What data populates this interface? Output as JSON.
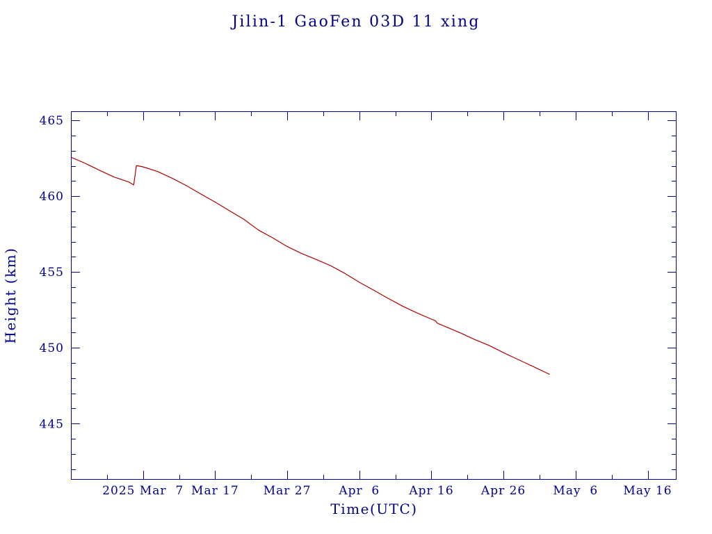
{
  "chart_data": {
    "type": "line",
    "title": "Jilin-1 GaoFen 03D 11 xing",
    "xlabel": "Time(UTC)",
    "ylabel": "Height (km)",
    "xlim": [
      "2025-02-25",
      "2025-05-20"
    ],
    "ylim": [
      441.3,
      465.6
    ],
    "x_ticks": [
      {
        "date": "2025-03-07",
        "label": "2025 Mar  7"
      },
      {
        "date": "2025-03-17",
        "label": "Mar 17"
      },
      {
        "date": "2025-03-27",
        "label": "Mar 27"
      },
      {
        "date": "2025-04-06",
        "label": "Apr  6"
      },
      {
        "date": "2025-04-16",
        "label": "Apr 16"
      },
      {
        "date": "2025-04-26",
        "label": "Apr 26"
      },
      {
        "date": "2025-05-06",
        "label": "May  6"
      },
      {
        "date": "2025-05-16",
        "label": "May 16"
      }
    ],
    "x_minor_tick_step_days": 5,
    "y_ticks": [
      445,
      450,
      455,
      460,
      465
    ],
    "y_minor_tick_step": 1,
    "grid": false,
    "series": [
      {
        "color": "#b00000",
        "x": [
          "2025-02-25",
          "2025-02-27",
          "2025-03-01",
          "2025-03-03",
          "2025-03-05",
          "2025-03-05T17:00",
          "2025-03-06T02:00",
          "2025-03-07",
          "2025-03-09",
          "2025-03-11",
          "2025-03-13",
          "2025-03-15",
          "2025-03-17",
          "2025-03-19",
          "2025-03-21",
          "2025-03-23",
          "2025-03-25",
          "2025-03-27",
          "2025-03-29",
          "2025-03-31",
          "2025-04-02",
          "2025-04-04",
          "2025-04-06",
          "2025-04-08",
          "2025-04-10",
          "2025-04-12",
          "2025-04-14",
          "2025-04-16",
          "2025-04-16T13:00",
          "2025-04-16T20:00",
          "2025-04-18",
          "2025-04-20",
          "2025-04-22",
          "2025-04-24",
          "2025-04-26",
          "2025-04-28",
          "2025-04-30",
          "2025-05-02",
          "2025-05-02T09:00"
        ],
        "y": [
          462.57,
          462.16,
          461.7,
          461.26,
          460.94,
          460.74,
          462.02,
          461.93,
          461.63,
          461.19,
          460.7,
          460.15,
          459.61,
          459.04,
          458.47,
          457.77,
          457.25,
          456.68,
          456.22,
          455.83,
          455.42,
          454.91,
          454.32,
          453.8,
          453.26,
          452.75,
          452.3,
          451.89,
          451.79,
          451.62,
          451.39,
          450.99,
          450.55,
          450.16,
          449.68,
          449.23,
          448.79,
          448.34,
          448.26
        ]
      }
    ]
  },
  "colors": {
    "axes_and_text": "#00008b",
    "background": "#ffffff"
  }
}
